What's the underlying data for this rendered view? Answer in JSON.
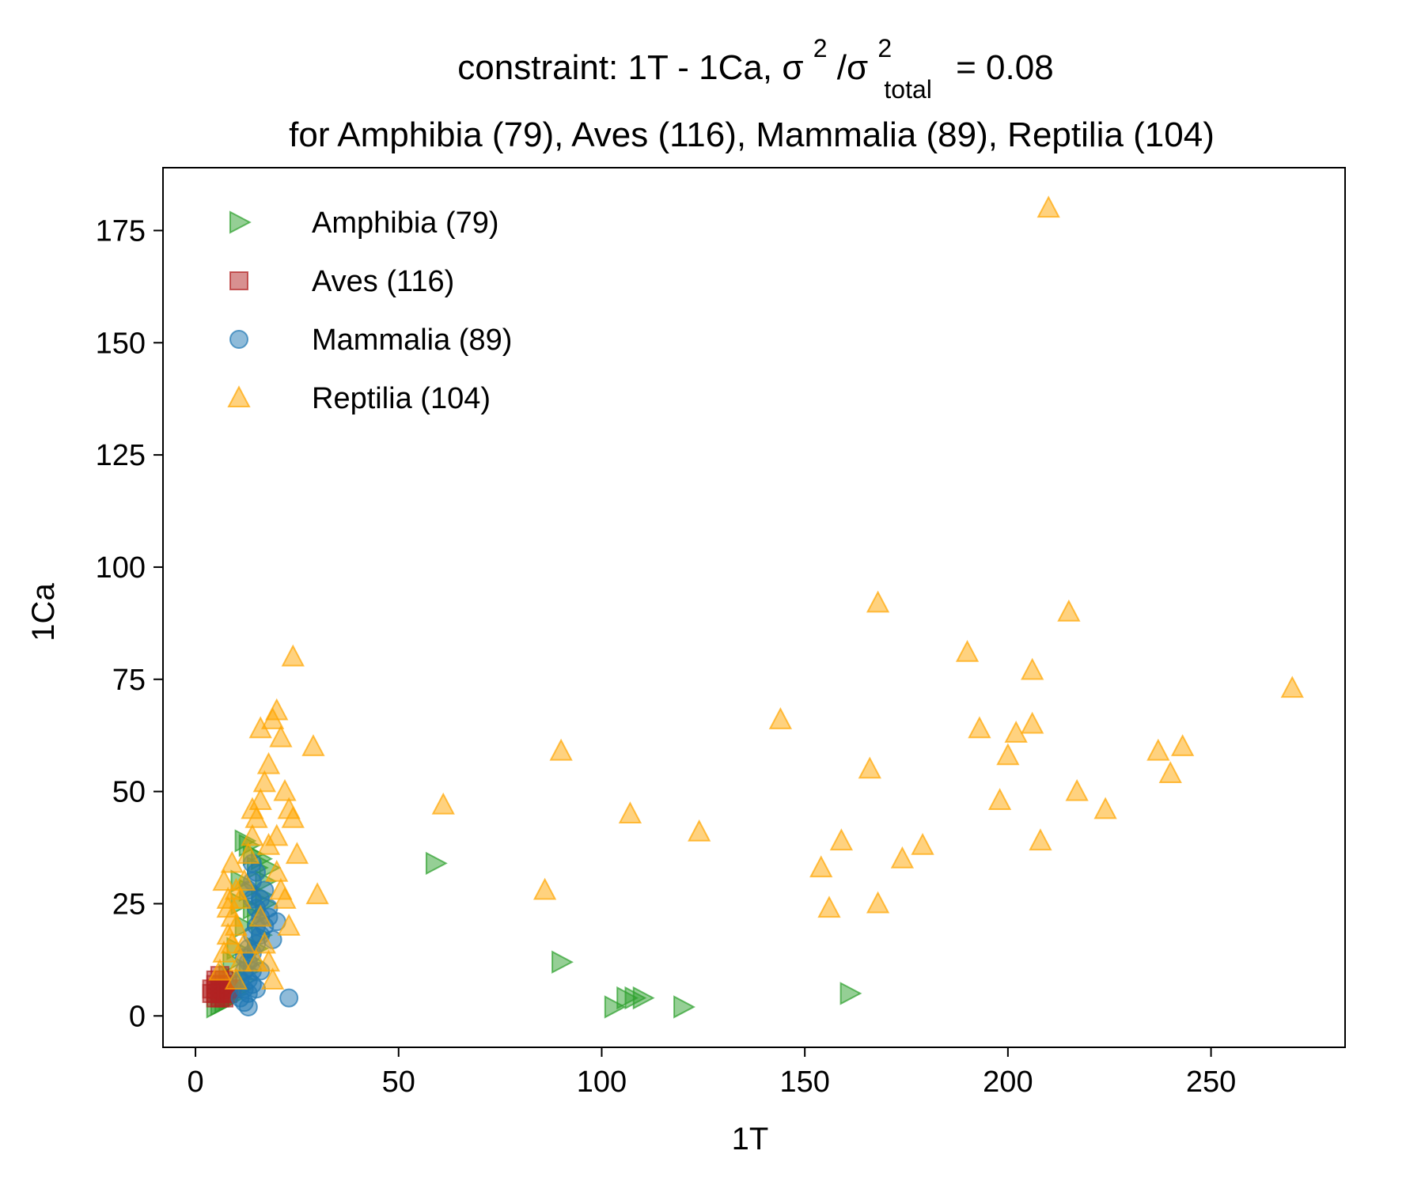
{
  "chart_data": {
    "type": "scatter",
    "title_parts": {
      "prefix": "constraint: 1T - 1Ca, σ",
      "sup1": "2",
      "mid": "/σ",
      "sup2": "2",
      "sub": "total",
      "suffix": "=  0.08"
    },
    "subtitle": "for Amphibia (79), Aves (116), Mammalia (89), Reptilia (104)",
    "xlabel": "1T",
    "ylabel": "1Ca",
    "xlim": [
      -8,
      283
    ],
    "ylim": [
      -7,
      189
    ],
    "xticks": [
      0,
      50,
      100,
      150,
      200,
      250
    ],
    "yticks": [
      0,
      25,
      50,
      75,
      100,
      125,
      150,
      175
    ],
    "legend_position": "upper-left",
    "series": [
      {
        "name": "Amphibia (79)",
        "marker": "triangle-right",
        "color": "#2ca02c",
        "points": [
          [
            5,
            2
          ],
          [
            6,
            2.5
          ],
          [
            7,
            3
          ],
          [
            8,
            3.5
          ],
          [
            9,
            4
          ],
          [
            10,
            5
          ],
          [
            11,
            6
          ],
          [
            12,
            8
          ],
          [
            13,
            10
          ],
          [
            14,
            12
          ],
          [
            15,
            15
          ],
          [
            16,
            18
          ],
          [
            15,
            22
          ],
          [
            16,
            27
          ],
          [
            17,
            30
          ],
          [
            15,
            33
          ],
          [
            14,
            36
          ],
          [
            13,
            38
          ],
          [
            12,
            39
          ],
          [
            16,
            35
          ],
          [
            18,
            33
          ],
          [
            12,
            20
          ],
          [
            11,
            25
          ],
          [
            13,
            28
          ],
          [
            14,
            24
          ],
          [
            10,
            15
          ],
          [
            9,
            12
          ],
          [
            8,
            9
          ],
          [
            7,
            6
          ],
          [
            6,
            5
          ],
          [
            11,
            30
          ],
          [
            17,
            25
          ],
          [
            59,
            34
          ],
          [
            90,
            12
          ],
          [
            103,
            2
          ],
          [
            106,
            4
          ],
          [
            108,
            4
          ],
          [
            110,
            4
          ],
          [
            120,
            2
          ],
          [
            161,
            5
          ]
        ]
      },
      {
        "name": "Aves (116)",
        "marker": "square",
        "color": "#b22222",
        "points": [
          [
            4,
            6
          ],
          [
            5,
            5
          ],
          [
            6,
            7
          ],
          [
            7,
            6
          ],
          [
            5,
            8
          ],
          [
            6,
            4
          ],
          [
            7,
            5
          ],
          [
            8,
            6
          ],
          [
            4,
            5
          ],
          [
            5,
            7
          ],
          [
            6,
            6
          ],
          [
            7,
            8
          ],
          [
            8,
            7
          ],
          [
            5,
            6
          ],
          [
            6,
            5
          ],
          [
            9,
            6
          ],
          [
            7,
            4
          ],
          [
            6,
            9
          ],
          [
            8,
            5
          ],
          [
            5,
            4
          ]
        ]
      },
      {
        "name": "Mammalia (89)",
        "marker": "circle",
        "color": "#1f77b4",
        "points": [
          [
            11,
            4
          ],
          [
            12,
            3
          ],
          [
            13,
            2
          ],
          [
            12,
            6
          ],
          [
            13,
            8
          ],
          [
            14,
            10
          ],
          [
            13,
            12
          ],
          [
            14,
            14
          ],
          [
            15,
            16
          ],
          [
            14,
            18
          ],
          [
            15,
            20
          ],
          [
            16,
            22
          ],
          [
            15,
            24
          ],
          [
            14,
            26
          ],
          [
            13,
            28
          ],
          [
            14,
            30
          ],
          [
            15,
            32
          ],
          [
            14,
            34
          ],
          [
            16,
            18
          ],
          [
            17,
            20
          ],
          [
            18,
            22
          ],
          [
            19,
            17
          ],
          [
            20,
            21
          ],
          [
            12,
            10
          ],
          [
            13,
            15
          ],
          [
            11,
            8
          ],
          [
            12,
            13
          ],
          [
            16,
            26
          ],
          [
            17,
            28
          ],
          [
            18,
            24
          ],
          [
            15,
            6
          ],
          [
            16,
            10
          ],
          [
            13,
            5
          ],
          [
            14,
            7
          ],
          [
            23,
            4
          ]
        ]
      },
      {
        "name": "Reptilia (104)",
        "marker": "triangle-up",
        "color": "#ffa500",
        "points": [
          [
            6,
            10
          ],
          [
            7,
            14
          ],
          [
            8,
            18
          ],
          [
            9,
            22
          ],
          [
            8,
            26
          ],
          [
            7,
            30
          ],
          [
            9,
            34
          ],
          [
            10,
            28
          ],
          [
            8,
            24
          ],
          [
            9,
            16
          ],
          [
            10,
            20
          ],
          [
            11,
            26
          ],
          [
            12,
            30
          ],
          [
            13,
            36
          ],
          [
            14,
            40
          ],
          [
            15,
            44
          ],
          [
            16,
            48
          ],
          [
            17,
            52
          ],
          [
            18,
            56
          ],
          [
            19,
            66
          ],
          [
            20,
            68
          ],
          [
            21,
            62
          ],
          [
            24,
            80
          ],
          [
            16,
            64
          ],
          [
            22,
            50
          ],
          [
            23,
            46
          ],
          [
            24,
            44
          ],
          [
            25,
            36
          ],
          [
            29,
            60
          ],
          [
            30,
            27
          ],
          [
            23,
            20
          ],
          [
            20,
            32
          ],
          [
            21,
            28
          ],
          [
            22,
            26
          ],
          [
            18,
            12
          ],
          [
            19,
            8
          ],
          [
            17,
            16
          ],
          [
            16,
            22
          ],
          [
            15,
            12
          ],
          [
            14,
            46
          ],
          [
            18,
            38
          ],
          [
            20,
            40
          ],
          [
            10,
            8
          ],
          [
            11,
            12
          ],
          [
            12,
            16
          ],
          [
            61,
            47
          ],
          [
            86,
            28
          ],
          [
            90,
            59
          ],
          [
            107,
            45
          ],
          [
            124,
            41
          ],
          [
            144,
            66
          ],
          [
            154,
            33
          ],
          [
            156,
            24
          ],
          [
            159,
            39
          ],
          [
            166,
            55
          ],
          [
            168,
            25
          ],
          [
            168,
            92
          ],
          [
            174,
            35
          ],
          [
            179,
            38
          ],
          [
            190,
            81
          ],
          [
            193,
            64
          ],
          [
            198,
            48
          ],
          [
            200,
            58
          ],
          [
            202,
            63
          ],
          [
            206,
            65
          ],
          [
            206,
            77
          ],
          [
            208,
            39
          ],
          [
            210,
            180
          ],
          [
            215,
            90
          ],
          [
            217,
            50
          ],
          [
            224,
            46
          ],
          [
            237,
            59
          ],
          [
            240,
            54
          ],
          [
            243,
            60
          ],
          [
            270,
            73
          ]
        ]
      }
    ]
  }
}
